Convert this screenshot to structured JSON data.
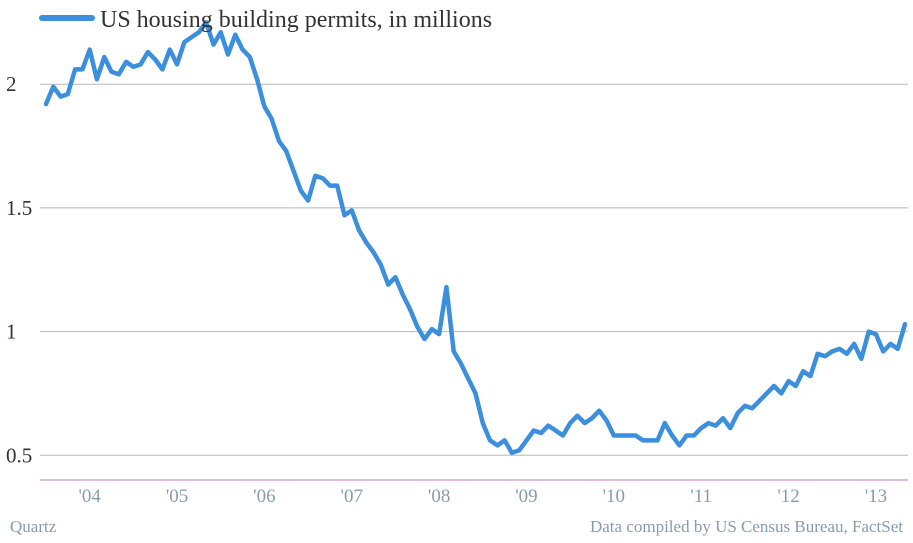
{
  "chart_data": {
    "type": "line",
    "title": "",
    "xlabel": "",
    "ylabel": "",
    "ylim": [
      0.4,
      2.3
    ],
    "grid": true,
    "legend_position": "top-left",
    "y_ticks": [
      {
        "value": 0.5,
        "label": "0.5"
      },
      {
        "value": 1,
        "label": "1"
      },
      {
        "value": 1.5,
        "label": "1.5"
      },
      {
        "value": 2,
        "label": "2"
      }
    ],
    "x_ticks": [
      {
        "value": 2004.0,
        "label": "'04"
      },
      {
        "value": 2005.0,
        "label": "'05"
      },
      {
        "value": 2006.0,
        "label": "'06"
      },
      {
        "value": 2007.0,
        "label": "'07"
      },
      {
        "value": 2008.0,
        "label": "'08"
      },
      {
        "value": 2009.0,
        "label": "'09"
      },
      {
        "value": 2010.0,
        "label": "'10"
      },
      {
        "value": 2011.0,
        "label": "'11"
      },
      {
        "value": 2012.0,
        "label": "'12"
      },
      {
        "value": 2013.0,
        "label": "'13"
      }
    ],
    "series": [
      {
        "name": "US housing building permits, in millions",
        "color": "#3b8fdc",
        "x": [
          2003.5,
          2003.583,
          2003.667,
          2003.75,
          2003.833,
          2003.917,
          2004.0,
          2004.083,
          2004.167,
          2004.25,
          2004.333,
          2004.417,
          2004.5,
          2004.583,
          2004.667,
          2004.75,
          2004.833,
          2004.917,
          2005.0,
          2005.083,
          2005.167,
          2005.25,
          2005.333,
          2005.417,
          2005.5,
          2005.583,
          2005.667,
          2005.75,
          2005.833,
          2005.917,
          2006.0,
          2006.083,
          2006.167,
          2006.25,
          2006.333,
          2006.417,
          2006.5,
          2006.583,
          2006.667,
          2006.75,
          2006.833,
          2006.917,
          2007.0,
          2007.083,
          2007.167,
          2007.25,
          2007.333,
          2007.417,
          2007.5,
          2007.583,
          2007.667,
          2007.75,
          2007.833,
          2007.917,
          2008.0,
          2008.083,
          2008.167,
          2008.25,
          2008.333,
          2008.417,
          2008.5,
          2008.583,
          2008.667,
          2008.75,
          2008.833,
          2008.917,
          2009.0,
          2009.083,
          2009.167,
          2009.25,
          2009.333,
          2009.417,
          2009.5,
          2009.583,
          2009.667,
          2009.75,
          2009.833,
          2009.917,
          2010.0,
          2010.083,
          2010.167,
          2010.25,
          2010.333,
          2010.417,
          2010.5,
          2010.583,
          2010.667,
          2010.75,
          2010.833,
          2010.917,
          2011.0,
          2011.083,
          2011.167,
          2011.25,
          2011.333,
          2011.417,
          2011.5,
          2011.583,
          2011.667,
          2011.75,
          2011.833,
          2011.917,
          2012.0,
          2012.083,
          2012.167,
          2012.25,
          2012.333,
          2012.417,
          2012.5,
          2012.583,
          2012.667,
          2012.75,
          2012.833,
          2012.917,
          2013.0,
          2013.083,
          2013.167,
          2013.25,
          2013.333
        ],
        "values": [
          1.92,
          1.99,
          1.95,
          1.96,
          2.06,
          2.06,
          2.14,
          2.02,
          2.11,
          2.05,
          2.04,
          2.09,
          2.07,
          2.08,
          2.13,
          2.1,
          2.06,
          2.14,
          2.08,
          2.17,
          2.19,
          2.21,
          2.25,
          2.16,
          2.21,
          2.12,
          2.2,
          2.14,
          2.11,
          2.02,
          1.91,
          1.86,
          1.77,
          1.73,
          1.65,
          1.57,
          1.53,
          1.63,
          1.62,
          1.59,
          1.59,
          1.47,
          1.49,
          1.41,
          1.36,
          1.32,
          1.27,
          1.19,
          1.22,
          1.15,
          1.09,
          1.02,
          0.97,
          1.01,
          0.99,
          1.18,
          0.92,
          0.87,
          0.81,
          0.75,
          0.63,
          0.56,
          0.54,
          0.56,
          0.51,
          0.52,
          0.56,
          0.6,
          0.59,
          0.62,
          0.6,
          0.58,
          0.63,
          0.66,
          0.63,
          0.65,
          0.68,
          0.64,
          0.58,
          0.58,
          0.58,
          0.58,
          0.56,
          0.56,
          0.56,
          0.63,
          0.58,
          0.54,
          0.58,
          0.58,
          0.61,
          0.63,
          0.62,
          0.65,
          0.61,
          0.67,
          0.7,
          0.69,
          0.72,
          0.75,
          0.78,
          0.75,
          0.8,
          0.78,
          0.84,
          0.82,
          0.91,
          0.9,
          0.92,
          0.93,
          0.91,
          0.95,
          0.89,
          1.0,
          0.99,
          0.92,
          0.95,
          0.93,
          1.03
        ]
      }
    ]
  },
  "footer": {
    "left": "Quartz",
    "right": "Data compiled by US Census Bureau, FactSet"
  }
}
